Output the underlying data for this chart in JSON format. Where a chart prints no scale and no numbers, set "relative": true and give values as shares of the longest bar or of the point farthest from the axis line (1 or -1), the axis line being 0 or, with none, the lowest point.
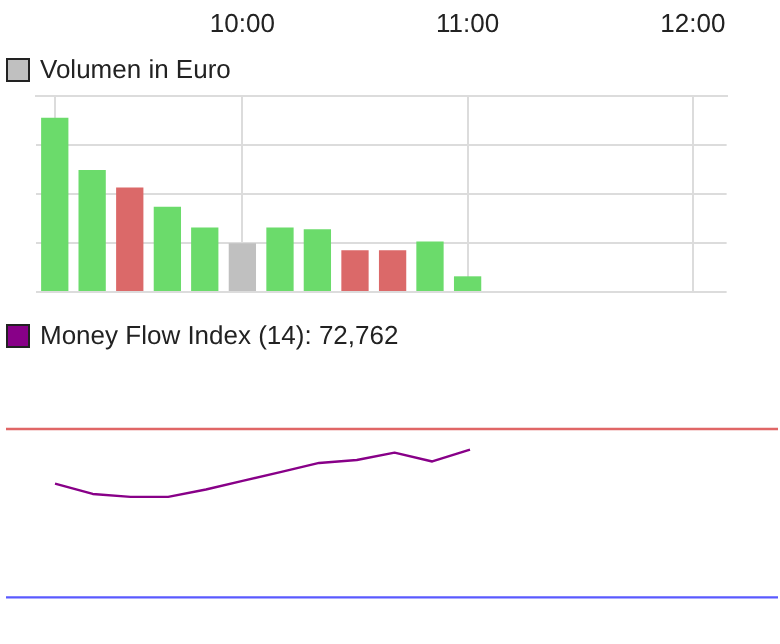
{
  "chart_data": [
    {
      "type": "bar",
      "relative": true,
      "grid": true,
      "legend": "top left",
      "x": [
        9.167,
        9.333,
        9.5,
        9.667,
        9.833,
        10,
        10.167,
        10.333,
        10.5,
        10.667,
        10.833,
        11
      ],
      "xlim": [
        9.083,
        12.15
      ],
      "xticks": [
        {
          "value": 9.167,
          "label": null
        },
        {
          "value": 10,
          "label": "10:00"
        },
        {
          "value": 11,
          "label": "11:00"
        },
        {
          "value": 12,
          "label": "12:00"
        }
      ],
      "series": [
        {
          "name": "Volumen in Euro",
          "color": "#c0c0c0",
          "colors": [
            "#6bdb6b",
            "#6bdb6b",
            "#db6969",
            "#6bdb6b",
            "#6bdb6b",
            "#c0c0c0",
            "#6bdb6b",
            "#6bdb6b",
            "#db6969",
            "#db6969",
            "#6bdb6b",
            "#6bdb6b"
          ],
          "values": [
            1,
            0.7,
            0.6,
            0.49,
            0.37,
            0.28,
            0.37,
            0.36,
            0.24,
            0.24,
            0.29,
            0.09
          ]
        }
      ]
    },
    {
      "type": "line",
      "relative": true,
      "legend": "top left",
      "categories": [
        null,
        null,
        null,
        null,
        null,
        null,
        null,
        null,
        null,
        null,
        null,
        null
      ],
      "series": [
        {
          "name": "Money Flow Index (14): 72,762",
          "color": "#880088",
          "values": [
            0.77,
            0.7,
            0.68,
            0.68,
            0.73,
            0.79,
            0.85,
            0.91,
            0.93,
            0.98,
            0.92,
            1
          ]
        }
      ],
      "ref_lines": [
        {
          "axis": "y",
          "value": 1.14,
          "color": "#e06666"
        },
        {
          "axis": "y",
          "value": 0,
          "color": "#5a5aff"
        }
      ]
    }
  ]
}
